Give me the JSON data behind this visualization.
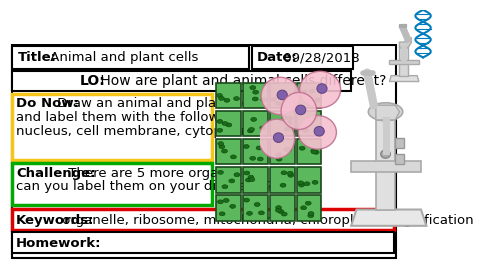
{
  "title_bold": "Title:",
  "title_text": " Animal and plant cells",
  "date_bold": "Date:",
  "date_text": " 09/28/2018",
  "lo_bold": "LO:",
  "lo_text": " How are plant and animal cells different?",
  "donow_bold": "Do Now:",
  "donow_line1": " Draw an animal and plant cell",
  "donow_line2": "and label them with the following –",
  "donow_line3": "nucleus, cell membrane, cytoplasm",
  "challenge_bold": "Challenge:",
  "challenge_line1": " There are 5 more organelles,",
  "challenge_line2": "can you label them on your diagrams?",
  "keywords_bold": "Keywords:",
  "keywords_text": " organelle, ribosome, mitochondria, chloroplast, magnification",
  "homework_bold": "Homework:",
  "bg_color": "#ffffff",
  "donow_box_color": "#f5c518",
  "challenge_box_color": "#00aa00",
  "keywords_box_color": "#dd0000",
  "black": "#000000",
  "font_size": 9.5,
  "lw_thin": 1.5,
  "lw_thick": 2.5
}
